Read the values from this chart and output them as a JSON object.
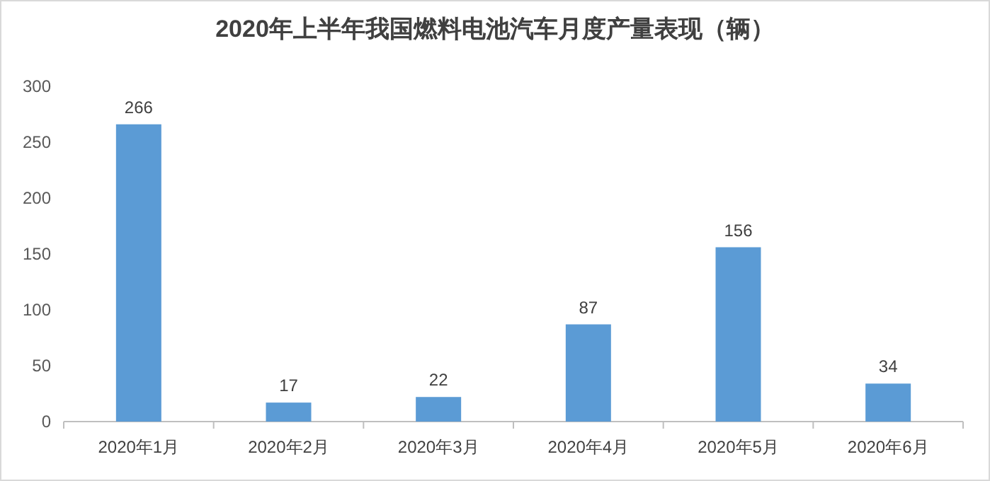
{
  "chart_data": {
    "type": "bar",
    "title": "2020年上半年我国燃料电池汽车月度产量表现（辆）",
    "categories": [
      "2020年1月",
      "2020年2月",
      "2020年3月",
      "2020年4月",
      "2020年5月",
      "2020年6月"
    ],
    "values": [
      266,
      17,
      22,
      87,
      156,
      34
    ],
    "color": "#5b9bd5",
    "ylim": [
      0,
      300
    ],
    "yticks": [
      0,
      50,
      100,
      150,
      200,
      250,
      300
    ],
    "grid": false,
    "data_labels": true
  }
}
